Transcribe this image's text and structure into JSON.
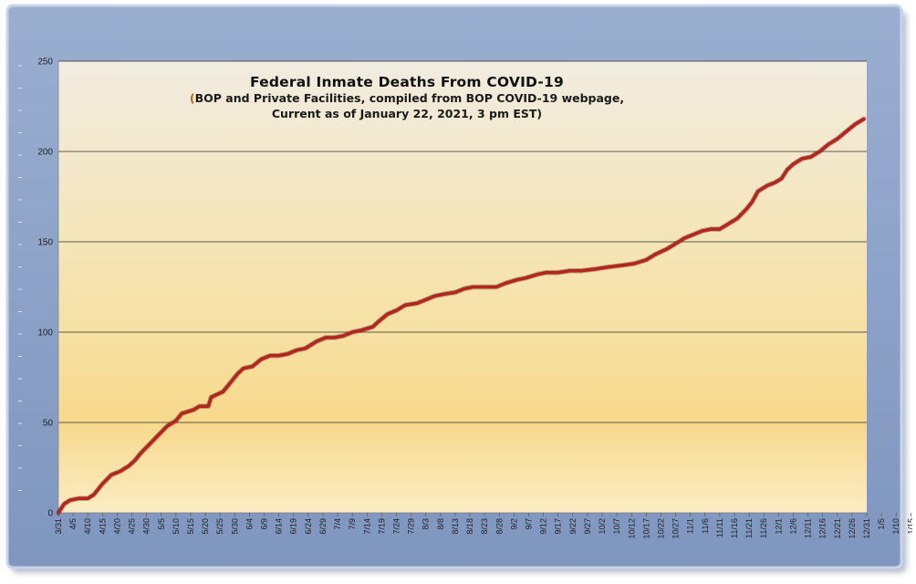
{
  "chart_data": {
    "type": "line",
    "title": "Federal Inmate Deaths From COVID-19",
    "subtitle_line1": "BOP and Private Facilities, compiled from BOP COVID-19 webpage,",
    "subtitle_line2": "Current as of January 22, 2021, 3 pm EST)",
    "subtitle_open_paren": "(",
    "subtitle_close_paren": ",",
    "xlabel": "",
    "ylabel": "",
    "ylim": [
      0,
      250
    ],
    "yticks": [
      "0",
      "50",
      "100",
      "150",
      "200",
      "250"
    ],
    "xticks": [
      "3/31",
      "4/5",
      "4/10",
      "4/15",
      "4/20",
      "4/25",
      "4/30",
      "5/5",
      "5/10",
      "5/15",
      "5/20",
      "5/25",
      "5/30",
      "6/4",
      "6/9",
      "6/14",
      "6/19",
      "6/24",
      "6/29",
      "7/4",
      "7/9",
      "7/14",
      "7/19",
      "7/24",
      "7/29",
      "8/3",
      "8/8",
      "8/13",
      "8/18",
      "8/23",
      "8/28",
      "9/2",
      "9/7",
      "9/12",
      "9/17",
      "9/22",
      "9/27",
      "10/2",
      "10/7",
      "10/12",
      "10/17",
      "10/22",
      "10/27",
      "11/1",
      "11/6",
      "11/11",
      "11/16",
      "11/21",
      "11/26",
      "12/1",
      "12/6",
      "12/11",
      "12/16",
      "12/21",
      "12/26",
      "12/31",
      "1/5",
      "1/10",
      "1/15",
      "1/20"
    ],
    "grid": true,
    "line_color": "#b3261e",
    "series": [
      {
        "values": [
          [
            0,
            0
          ],
          [
            2,
            5
          ],
          [
            4,
            7
          ],
          [
            7,
            8
          ],
          [
            10,
            8
          ],
          [
            12,
            10
          ],
          [
            15,
            16
          ],
          [
            18,
            21
          ],
          [
            21,
            23
          ],
          [
            24,
            26
          ],
          [
            26,
            29
          ],
          [
            28,
            33
          ],
          [
            31,
            38
          ],
          [
            34,
            43
          ],
          [
            37,
            48
          ],
          [
            40,
            51
          ],
          [
            42,
            55
          ],
          [
            46,
            57
          ],
          [
            48,
            59
          ],
          [
            51,
            59
          ],
          [
            52,
            64
          ],
          [
            56,
            67
          ],
          [
            58,
            71
          ],
          [
            61,
            77
          ],
          [
            63,
            80
          ],
          [
            66,
            81
          ],
          [
            69,
            85
          ],
          [
            72,
            87
          ],
          [
            75,
            87
          ],
          [
            78,
            88
          ],
          [
            81,
            90
          ],
          [
            84,
            91
          ],
          [
            88,
            95
          ],
          [
            91,
            97
          ],
          [
            94,
            97
          ],
          [
            97,
            98
          ],
          [
            100,
            100
          ],
          [
            103,
            101
          ],
          [
            107,
            103
          ],
          [
            109,
            106
          ],
          [
            112,
            110
          ],
          [
            115,
            112
          ],
          [
            118,
            115
          ],
          [
            122,
            116
          ],
          [
            125,
            118
          ],
          [
            128,
            120
          ],
          [
            131,
            121
          ],
          [
            135,
            122
          ],
          [
            138,
            124
          ],
          [
            141,
            125
          ],
          [
            145,
            125
          ],
          [
            149,
            125
          ],
          [
            152,
            127
          ],
          [
            156,
            129
          ],
          [
            159,
            130
          ],
          [
            163,
            132
          ],
          [
            166,
            133
          ],
          [
            170,
            133
          ],
          [
            174,
            134
          ],
          [
            178,
            134
          ],
          [
            183,
            135
          ],
          [
            187,
            136
          ],
          [
            192,
            137
          ],
          [
            196,
            138
          ],
          [
            200,
            140
          ],
          [
            203,
            143
          ],
          [
            207,
            146
          ],
          [
            210,
            149
          ],
          [
            213,
            152
          ],
          [
            216,
            154
          ],
          [
            219,
            156
          ],
          [
            222,
            157
          ],
          [
            225,
            157
          ],
          [
            228,
            160
          ],
          [
            231,
            163
          ],
          [
            234,
            168
          ],
          [
            236,
            172
          ],
          [
            238,
            178
          ],
          [
            241,
            181
          ],
          [
            244,
            183
          ],
          [
            246,
            185
          ],
          [
            248,
            190
          ],
          [
            250,
            193
          ],
          [
            253,
            196
          ],
          [
            256,
            197
          ],
          [
            259,
            200
          ],
          [
            262,
            204
          ],
          [
            265,
            207
          ],
          [
            268,
            211
          ],
          [
            271,
            215
          ],
          [
            274,
            218
          ]
        ]
      }
    ]
  }
}
